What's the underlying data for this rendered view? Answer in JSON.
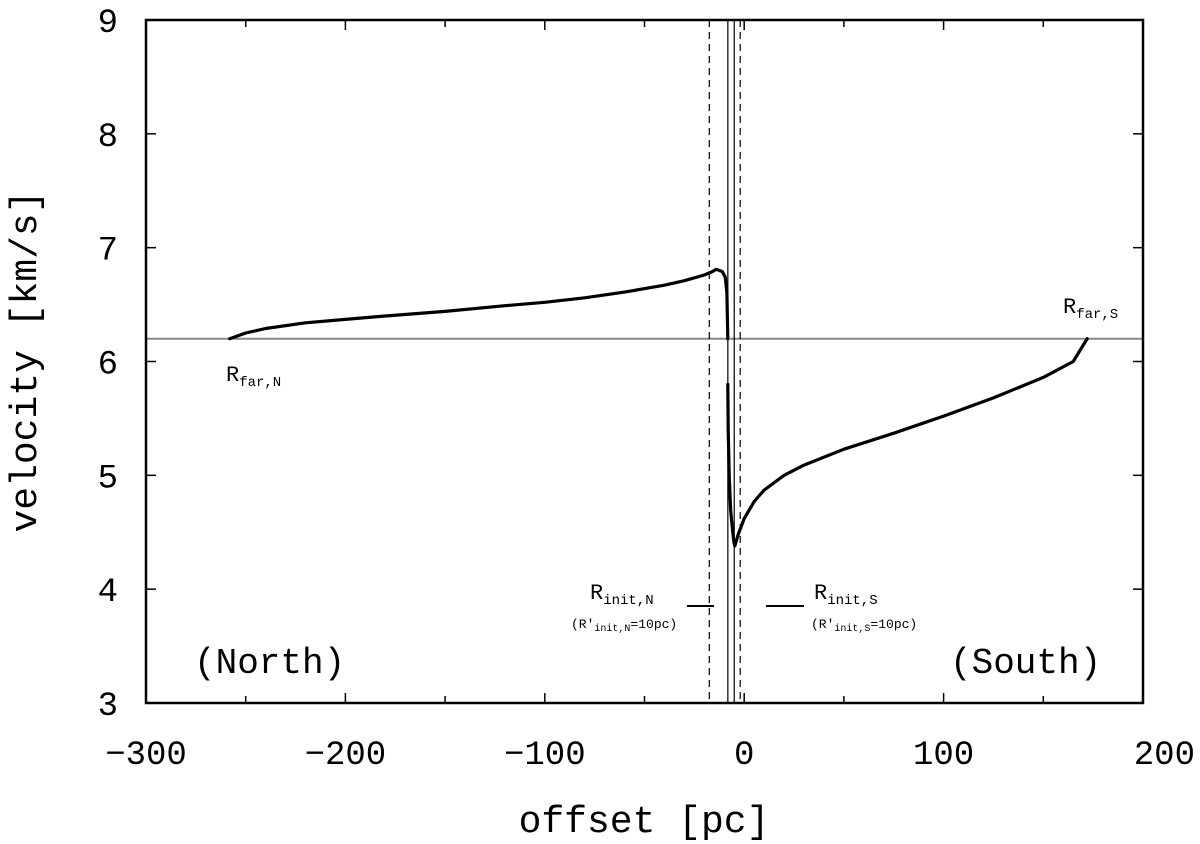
{
  "chart_data": {
    "type": "line",
    "xlabel": "offset [pc]",
    "ylabel": "velocity [km/s]",
    "xlim": [
      -300,
      200
    ],
    "ylim": [
      3,
      9
    ],
    "x_ticks": [
      "−300",
      "−200",
      "−100",
      "0",
      "100",
      "200"
    ],
    "y_ticks": [
      "3",
      "4",
      "5",
      "6",
      "7",
      "8",
      "9"
    ],
    "grid": false,
    "reference_line_y": 6.2,
    "series": [
      {
        "segment": "north",
        "x": [
          -258,
          -250,
          -240,
          -220,
          -200,
          -180,
          -150,
          -120,
          -100,
          -80,
          -60,
          -40,
          -30,
          -20,
          -16,
          -14,
          -11,
          -9.5,
          -8.7,
          -8.2
        ],
        "y": [
          6.2,
          6.25,
          6.29,
          6.34,
          6.37,
          6.4,
          6.44,
          6.49,
          6.52,
          6.56,
          6.61,
          6.67,
          6.71,
          6.76,
          6.79,
          6.81,
          6.79,
          6.74,
          6.6,
          6.2
        ]
      },
      {
        "segment": "south",
        "x": [
          -8.2,
          -8.0,
          -7.5,
          -6.8,
          -6.0,
          -5.4,
          -5.0,
          -4.7,
          -3,
          0,
          5,
          10,
          20,
          30,
          50,
          75,
          100,
          125,
          150,
          165,
          172
        ],
        "y": [
          5.8,
          5.4,
          5.0,
          4.7,
          4.55,
          4.45,
          4.4,
          4.38,
          4.48,
          4.62,
          4.77,
          4.87,
          5.0,
          5.09,
          5.23,
          5.37,
          5.52,
          5.68,
          5.86,
          6.0,
          6.2
        ]
      }
    ],
    "vertical_lines": {
      "dashed": [
        -17.5,
        -2.0
      ],
      "solid": [
        -8.2,
        -5.0
      ]
    },
    "annotations": {
      "far_n": {
        "main": "R",
        "sub": "far,N"
      },
      "far_s": {
        "main": "R",
        "sub": "far,S"
      },
      "init_n": {
        "main": "R",
        "sub": "init,N",
        "note_pre": "(R′",
        "note_sub": "init,N",
        "note_post": "=10pc)"
      },
      "init_s": {
        "main": "R",
        "sub": "init,S",
        "note_pre": "(R′",
        "note_sub": "init,S",
        "note_post": "=10pc)"
      },
      "north": "(North)",
      "south": "(South)"
    }
  }
}
